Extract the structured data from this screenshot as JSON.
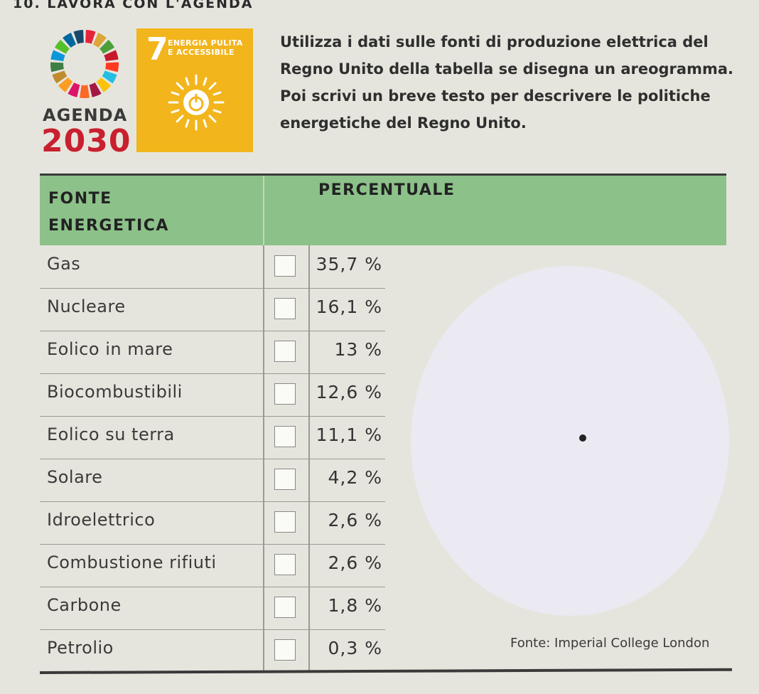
{
  "exercise": {
    "title": "10. LAVORA CON L'AGENDA"
  },
  "agenda_logo": {
    "word": "AGENDA",
    "year": "2030"
  },
  "sdg": {
    "number": "7",
    "label": "ENERGIA PULITA E ACCESSIBILE",
    "icon": "sun-power-icon",
    "color": "#f2b51c"
  },
  "instructions": {
    "text": "Utilizza i dati sulle fonti di produzione elettrica del Regno Unito della tabella se disegna un areogramma. Poi scrivi un breve testo per descrivere le politiche energetiche del Regno Unito."
  },
  "table": {
    "header_color": "#8cc189",
    "columns": [
      "FONTE ENERGETICA",
      "PERCENTUALE"
    ],
    "rows": [
      {
        "source": "Gas",
        "percent": "35,7 %"
      },
      {
        "source": "Nucleare",
        "percent": "16,1 %"
      },
      {
        "source": "Eolico in mare",
        "percent": "13 %"
      },
      {
        "source": "Biocombustibili",
        "percent": "12,6 %"
      },
      {
        "source": "Eolico su terra",
        "percent": "11,1 %"
      },
      {
        "source": "Solare",
        "percent": "4,2 %"
      },
      {
        "source": "Idroelettrico",
        "percent": "2,6 %"
      },
      {
        "source": "Combustione rifiuti",
        "percent": "2,6 %"
      },
      {
        "source": "Carbone",
        "percent": "1,8 %"
      },
      {
        "source": "Petrolio",
        "percent": "0,3 %"
      }
    ]
  },
  "pie_area": {
    "fill": "#ebe9f2"
  },
  "source_note": "Fonte: Imperial College London"
}
